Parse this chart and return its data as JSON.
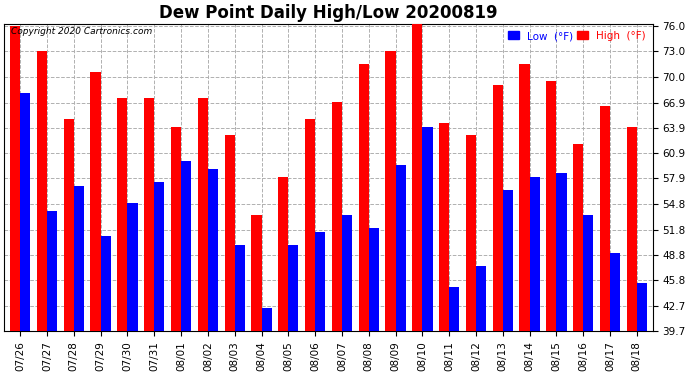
{
  "title": "Dew Point Daily High/Low 20200819",
  "copyright": "Copyright 2020 Cartronics.com",
  "dates": [
    "07/26",
    "07/27",
    "07/28",
    "07/29",
    "07/30",
    "07/31",
    "08/01",
    "08/02",
    "08/03",
    "08/04",
    "08/05",
    "08/06",
    "08/07",
    "08/08",
    "08/09",
    "08/10",
    "08/11",
    "08/12",
    "08/13",
    "08/14",
    "08/15",
    "08/16",
    "08/17",
    "08/18"
  ],
  "high": [
    76.0,
    73.0,
    65.0,
    70.5,
    67.5,
    67.5,
    64.0,
    67.5,
    63.0,
    53.5,
    58.0,
    65.0,
    67.0,
    71.5,
    73.0,
    76.5,
    64.5,
    63.0,
    69.0,
    71.5,
    69.5,
    62.0,
    66.5,
    64.0
  ],
  "low": [
    68.0,
    54.0,
    57.0,
    51.0,
    55.0,
    57.5,
    60.0,
    59.0,
    50.0,
    42.5,
    50.0,
    51.5,
    53.5,
    52.0,
    59.5,
    64.0,
    45.0,
    47.5,
    56.5,
    58.0,
    58.5,
    53.5,
    49.0,
    45.5
  ],
  "ymin": 39.7,
  "ymax": 76.0,
  "yticks": [
    39.7,
    42.7,
    45.8,
    48.8,
    51.8,
    54.8,
    57.9,
    60.9,
    63.9,
    66.9,
    70.0,
    73.0,
    76.0
  ],
  "bar_width": 0.38,
  "high_color": "#ff0000",
  "low_color": "#0000ff",
  "bg_color": "#ffffff",
  "grid_color": "#b0b0b0",
  "title_fontsize": 12,
  "tick_fontsize": 7.5,
  "legend_low_label": "Low  (°F)",
  "legend_high_label": "High  (°F)"
}
